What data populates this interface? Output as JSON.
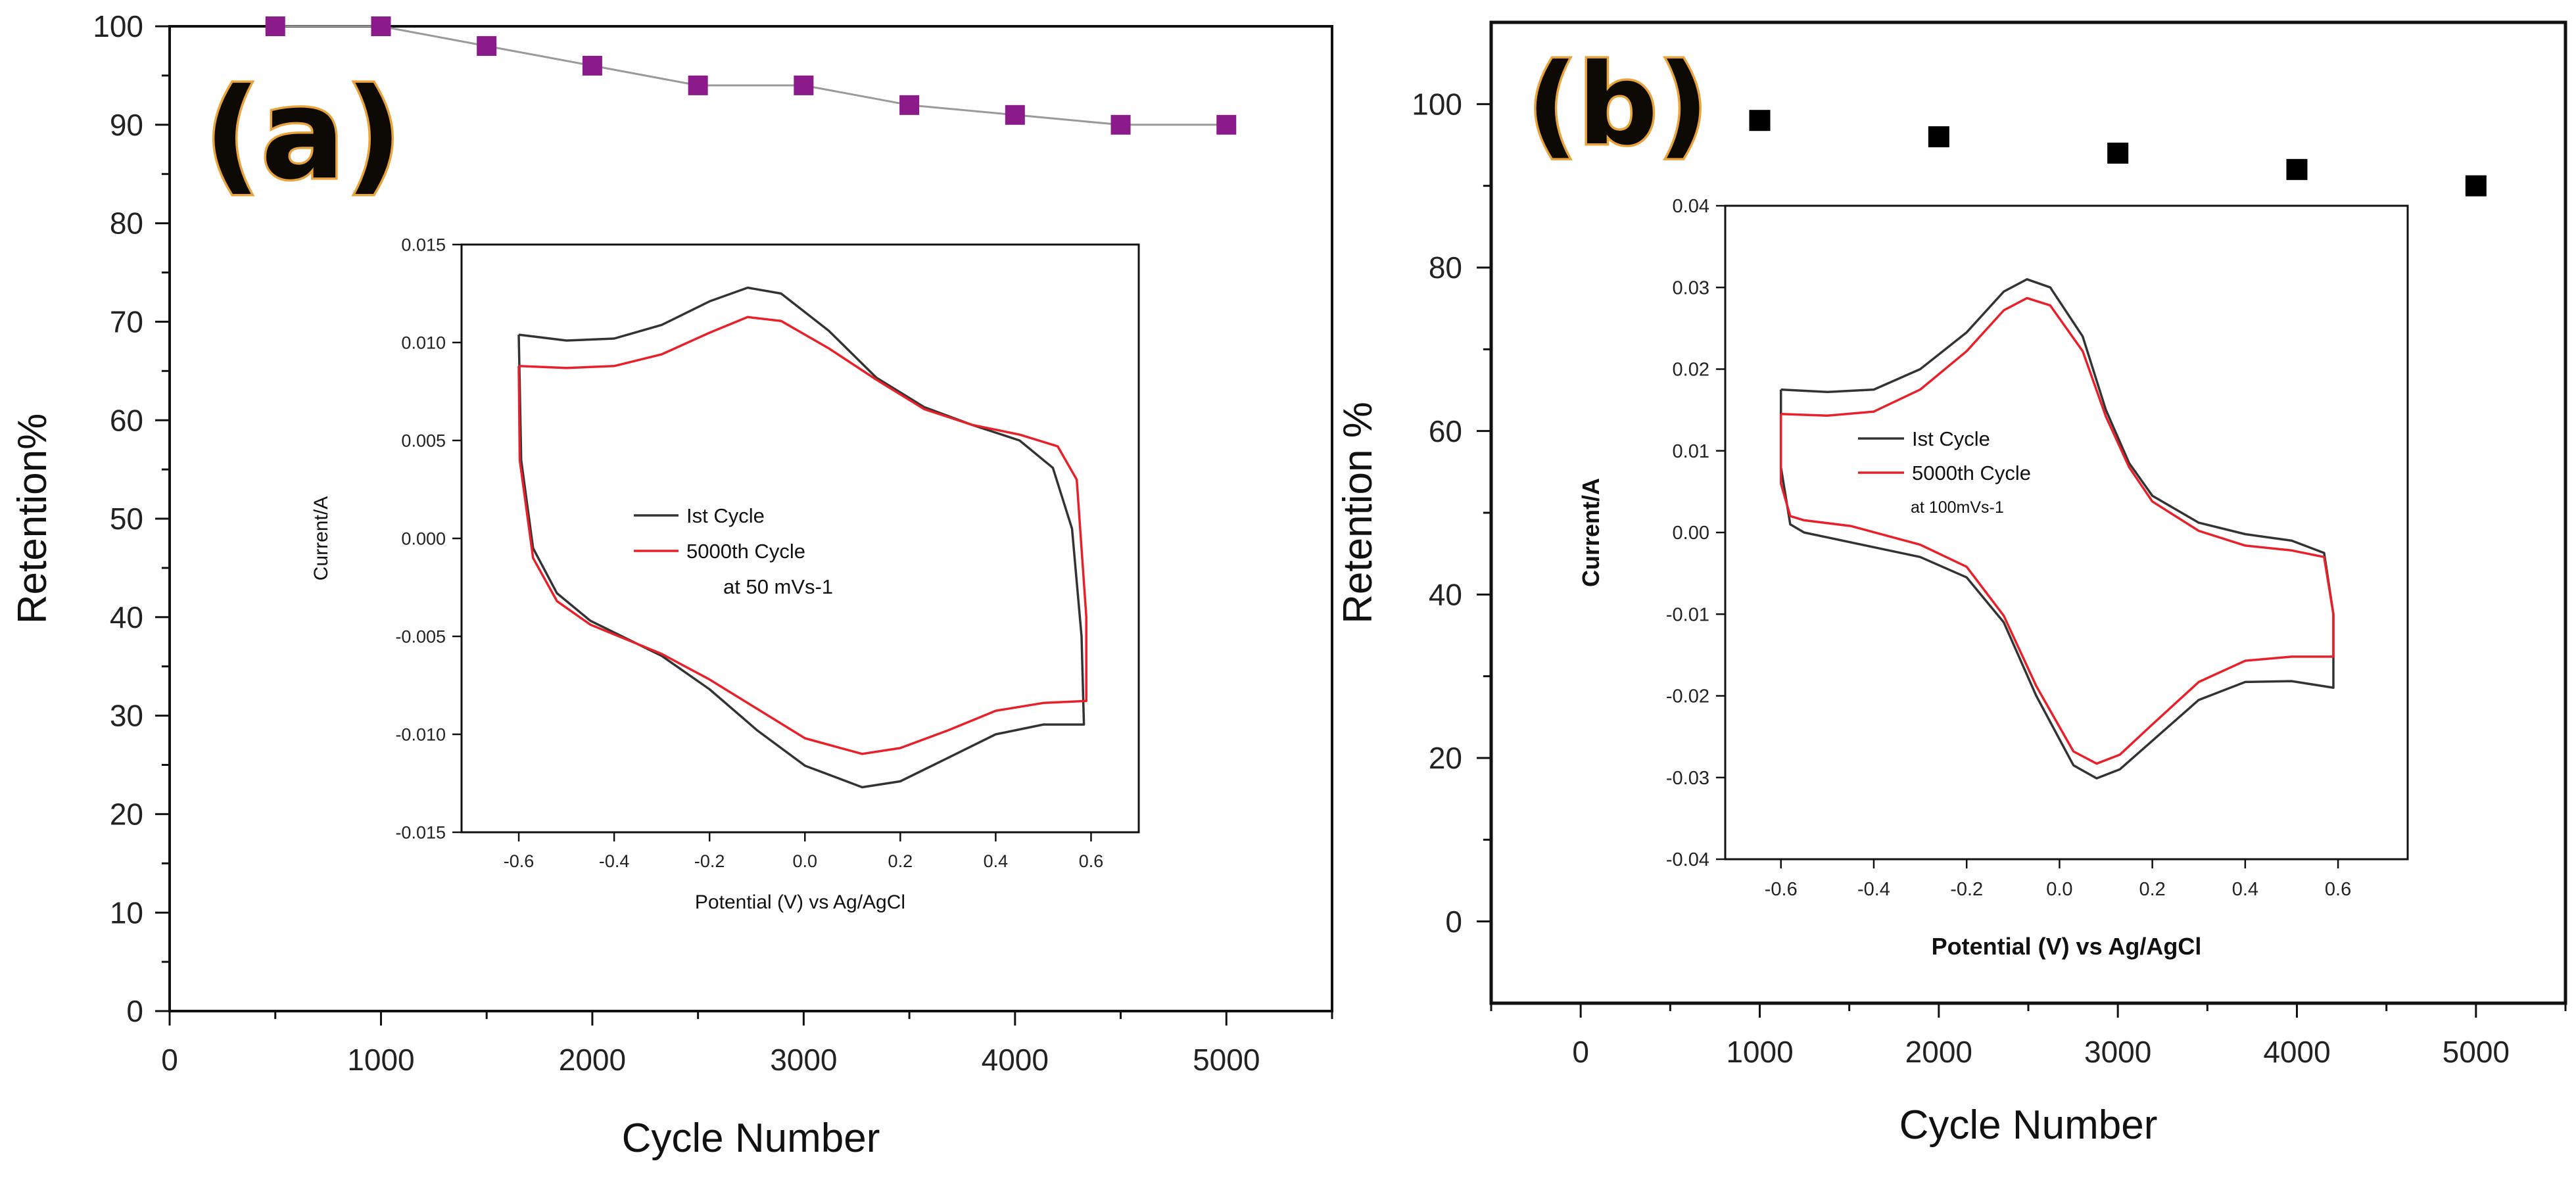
{
  "chart_data": [
    {
      "panel": "(a)",
      "type": "line",
      "xlabel": "Cycle Number",
      "ylabel": "Retention%",
      "xlim": [
        0,
        5500
      ],
      "ylim": [
        0,
        100
      ],
      "xticks": [
        0,
        1000,
        2000,
        3000,
        4000,
        5000
      ],
      "yticks": [
        0,
        10,
        20,
        30,
        40,
        50,
        60,
        70,
        80,
        90,
        100
      ],
      "series": [
        {
          "name": "Retention",
          "color": "#8b1a8b",
          "line_color": "#9a9a9a",
          "marker": "square",
          "x": [
            500,
            1000,
            1500,
            2000,
            2500,
            3000,
            3500,
            4000,
            4500,
            5000
          ],
          "y": [
            100,
            100,
            98,
            96,
            94,
            94,
            92,
            91,
            90,
            90
          ]
        }
      ],
      "inset": {
        "type": "line",
        "xlabel": "Potential (V) vs Ag/AgCl",
        "ylabel": "Current/A",
        "xlim": [
          -0.72,
          0.7
        ],
        "ylim": [
          -0.015,
          0.015
        ],
        "xticks": [
          -0.6,
          -0.4,
          -0.2,
          0.0,
          0.2,
          0.4,
          0.6
        ],
        "xtick_labels": [
          "-0.6",
          "-0.4",
          "-0.2",
          "0.0",
          "0.2",
          "0.4",
          "0.6"
        ],
        "yticks": [
          -0.015,
          -0.01,
          -0.005,
          0.0,
          0.005,
          0.01,
          0.015
        ],
        "ytick_labels": [
          "-0.015",
          "-0.010",
          "-0.005",
          "0.000",
          "0.005",
          "0.010",
          "0.015"
        ],
        "legend": {
          "entries": [
            "Ist Cycle",
            "5000th Cycle"
          ],
          "note": "at 50 mVs-1",
          "placement": "center"
        },
        "series": [
          {
            "name": "Ist Cycle",
            "color": "#333333",
            "points": [
              [
                -0.6,
                0.0104
              ],
              [
                -0.5,
                0.0101
              ],
              [
                -0.4,
                0.0102
              ],
              [
                -0.3,
                0.0109
              ],
              [
                -0.2,
                0.0121
              ],
              [
                -0.12,
                0.0128
              ],
              [
                -0.05,
                0.0125
              ],
              [
                0.05,
                0.0106
              ],
              [
                0.15,
                0.0082
              ],
              [
                0.25,
                0.0067
              ],
              [
                0.35,
                0.0058
              ],
              [
                0.45,
                0.005
              ],
              [
                0.52,
                0.0036
              ],
              [
                0.56,
                0.0005
              ],
              [
                0.58,
                -0.005
              ],
              [
                0.585,
                -0.0095
              ],
              [
                0.5,
                -0.0095
              ],
              [
                0.4,
                -0.01
              ],
              [
                0.3,
                -0.0112
              ],
              [
                0.2,
                -0.0124
              ],
              [
                0.12,
                -0.0127
              ],
              [
                0.0,
                -0.0116
              ],
              [
                -0.1,
                -0.0098
              ],
              [
                -0.2,
                -0.0077
              ],
              [
                -0.3,
                -0.006
              ],
              [
                -0.45,
                -0.0042
              ],
              [
                -0.52,
                -0.0028
              ],
              [
                -0.57,
                -0.0005
              ],
              [
                -0.595,
                0.004
              ],
              [
                -0.6,
                0.0104
              ]
            ]
          },
          {
            "name": "5000th Cycle",
            "color": "#e8202a",
            "points": [
              [
                -0.6,
                0.0088
              ],
              [
                -0.5,
                0.0087
              ],
              [
                -0.4,
                0.0088
              ],
              [
                -0.3,
                0.0094
              ],
              [
                -0.2,
                0.0105
              ],
              [
                -0.12,
                0.0113
              ],
              [
                -0.05,
                0.0111
              ],
              [
                0.05,
                0.0097
              ],
              [
                0.15,
                0.0081
              ],
              [
                0.25,
                0.0066
              ],
              [
                0.35,
                0.0058
              ],
              [
                0.45,
                0.0053
              ],
              [
                0.53,
                0.0047
              ],
              [
                0.57,
                0.003
              ],
              [
                0.59,
                -0.004
              ],
              [
                0.59,
                -0.0083
              ],
              [
                0.5,
                -0.0084
              ],
              [
                0.4,
                -0.0088
              ],
              [
                0.3,
                -0.0098
              ],
              [
                0.2,
                -0.0107
              ],
              [
                0.12,
                -0.011
              ],
              [
                0.0,
                -0.0102
              ],
              [
                -0.1,
                -0.0087
              ],
              [
                -0.2,
                -0.0072
              ],
              [
                -0.3,
                -0.0059
              ],
              [
                -0.45,
                -0.0044
              ],
              [
                -0.52,
                -0.0032
              ],
              [
                -0.57,
                -0.001
              ],
              [
                -0.598,
                0.004
              ],
              [
                -0.6,
                0.0088
              ]
            ]
          }
        ]
      }
    },
    {
      "panel": "(b)",
      "type": "scatter",
      "xlabel": "Cycle Number",
      "ylabel": "Retention %",
      "xlim": [
        -500,
        5500
      ],
      "ylim": [
        -10,
        110
      ],
      "xticks": [
        0,
        1000,
        2000,
        3000,
        4000,
        5000
      ],
      "yticks": [
        0,
        20,
        40,
        60,
        80,
        100
      ],
      "series": [
        {
          "name": "Retention",
          "color": "#000000",
          "marker": "square",
          "x": [
            1000,
            2000,
            3000,
            4000,
            5000
          ],
          "y": [
            98,
            96,
            94,
            92,
            90
          ]
        }
      ],
      "inset": {
        "type": "line",
        "xlabel": "Potential (V) vs Ag/AgCl",
        "ylabel": "Current/A",
        "xlim": [
          -0.72,
          0.75
        ],
        "ylim": [
          -0.04,
          0.04
        ],
        "xticks": [
          -0.6,
          -0.4,
          -0.2,
          0.0,
          0.2,
          0.4,
          0.6
        ],
        "xtick_labels": [
          "-0.6",
          "-0.4",
          "-0.2",
          "0.0",
          "0.2",
          "0.4",
          "0.6"
        ],
        "yticks": [
          -0.04,
          -0.03,
          -0.02,
          -0.01,
          0.0,
          0.01,
          0.02,
          0.03,
          0.04
        ],
        "ytick_labels": [
          "-0.04",
          "-0.03",
          "-0.02",
          "-0.01",
          "0.00",
          "0.01",
          "0.02",
          "0.03",
          "0.04"
        ],
        "legend": {
          "entries": [
            "Ist Cycle",
            "5000th Cycle"
          ],
          "note": "at 100mVs-1",
          "placement": "center"
        },
        "series": [
          {
            "name": "Ist Cycle",
            "color": "#333333",
            "points": [
              [
                -0.6,
                0.0175
              ],
              [
                -0.5,
                0.0172
              ],
              [
                -0.4,
                0.0175
              ],
              [
                -0.3,
                0.02
              ],
              [
                -0.2,
                0.0245
              ],
              [
                -0.12,
                0.0295
              ],
              [
                -0.07,
                0.031
              ],
              [
                -0.02,
                0.03
              ],
              [
                0.05,
                0.024
              ],
              [
                0.1,
                0.015
              ],
              [
                0.15,
                0.0085
              ],
              [
                0.2,
                0.0045
              ],
              [
                0.3,
                0.0012
              ],
              [
                0.4,
                -0.0002
              ],
              [
                0.5,
                -0.001
              ],
              [
                0.57,
                -0.0025
              ],
              [
                0.59,
                -0.01
              ],
              [
                0.59,
                -0.019
              ],
              [
                0.5,
                -0.0182
              ],
              [
                0.4,
                -0.0183
              ],
              [
                0.3,
                -0.0205
              ],
              [
                0.2,
                -0.0255
              ],
              [
                0.13,
                -0.029
              ],
              [
                0.08,
                -0.0301
              ],
              [
                0.03,
                -0.0285
              ],
              [
                -0.05,
                -0.02
              ],
              [
                -0.12,
                -0.011
              ],
              [
                -0.2,
                -0.0055
              ],
              [
                -0.3,
                -0.003
              ],
              [
                -0.45,
                -0.0012
              ],
              [
                -0.55,
                0.0
              ],
              [
                -0.58,
                0.001
              ],
              [
                -0.6,
                0.008
              ],
              [
                -0.6,
                0.0175
              ]
            ]
          },
          {
            "name": "5000th Cycle",
            "color": "#e8202a",
            "points": [
              [
                -0.6,
                0.0145
              ],
              [
                -0.5,
                0.0143
              ],
              [
                -0.4,
                0.0148
              ],
              [
                -0.3,
                0.0175
              ],
              [
                -0.2,
                0.0222
              ],
              [
                -0.12,
                0.0272
              ],
              [
                -0.07,
                0.0287
              ],
              [
                -0.02,
                0.0278
              ],
              [
                0.05,
                0.0222
              ],
              [
                0.1,
                0.0142
              ],
              [
                0.15,
                0.008
              ],
              [
                0.2,
                0.0038
              ],
              [
                0.3,
                0.0002
              ],
              [
                0.4,
                -0.0016
              ],
              [
                0.5,
                -0.0022
              ],
              [
                0.57,
                -0.003
              ],
              [
                0.59,
                -0.01
              ],
              [
                0.59,
                -0.0152
              ],
              [
                0.5,
                -0.0152
              ],
              [
                0.4,
                -0.0157
              ],
              [
                0.3,
                -0.0183
              ],
              [
                0.2,
                -0.0235
              ],
              [
                0.13,
                -0.0272
              ],
              [
                0.08,
                -0.0283
              ],
              [
                0.03,
                -0.0268
              ],
              [
                -0.05,
                -0.0188
              ],
              [
                -0.12,
                -0.0102
              ],
              [
                -0.2,
                -0.0042
              ],
              [
                -0.3,
                -0.0015
              ],
              [
                -0.45,
                0.0008
              ],
              [
                -0.55,
                0.0015
              ],
              [
                -0.58,
                0.002
              ],
              [
                -0.6,
                0.006
              ],
              [
                -0.6,
                0.0145
              ]
            ]
          }
        ]
      }
    }
  ]
}
